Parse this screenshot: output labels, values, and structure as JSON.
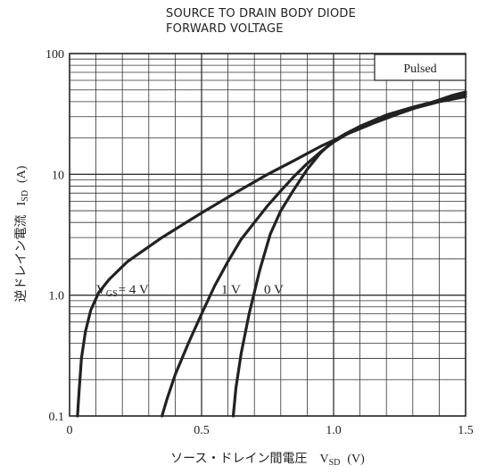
{
  "chart_data": {
    "type": "line",
    "title_lines": [
      "SOURCE TO DRAIN BODY DIODE",
      "FORWARD VOLTAGE"
    ],
    "xlabel": "ソース・ドレイン間電圧",
    "xlabel_symbol": "V",
    "xlabel_subscript": "SD",
    "xlabel_unit": "(V)",
    "ylabel": "逆ドレイン電流",
    "ylabel_symbol": "I",
    "ylabel_subscript": "SD",
    "ylabel_unit": "(A)",
    "xlim": [
      0,
      1.5
    ],
    "ylim": [
      0.1,
      100
    ],
    "yscale": "log",
    "x_ticks": [
      0,
      0.5,
      1.0,
      1.5
    ],
    "x_tick_labels": [
      "0",
      "0.5",
      "1.0",
      "1.5"
    ],
    "y_ticks": [
      0.1,
      1,
      10,
      100
    ],
    "y_tick_labels": [
      "0.1",
      "1.0",
      "10",
      "100"
    ],
    "grid": true,
    "annotation": "Pulsed",
    "series": [
      {
        "name": "V_GS = 4 V",
        "x": [
          0.03,
          0.035,
          0.045,
          0.06,
          0.08,
          0.11,
          0.15,
          0.22,
          0.35,
          0.5,
          0.65,
          0.75,
          0.85,
          0.95,
          1.05,
          1.15,
          1.25,
          1.35,
          1.45,
          1.5
        ],
        "y": [
          0.1,
          0.15,
          0.3,
          0.5,
          0.75,
          1.05,
          1.35,
          1.9,
          3.0,
          4.8,
          7.5,
          10,
          13,
          17,
          21.5,
          26.5,
          32,
          38,
          45,
          48
        ]
      },
      {
        "name": "1 V",
        "x": [
          0.35,
          0.37,
          0.4,
          0.45,
          0.5,
          0.55,
          0.6,
          0.65,
          0.7,
          0.75,
          0.8,
          0.85,
          0.9,
          0.95,
          1.0,
          1.1,
          1.2,
          1.3,
          1.4,
          1.5
        ],
        "y": [
          0.1,
          0.14,
          0.22,
          0.4,
          0.7,
          1.2,
          1.9,
          2.9,
          4.0,
          5.5,
          7.3,
          9.6,
          12.3,
          15.3,
          18.5,
          25,
          31,
          36,
          41,
          46
        ]
      },
      {
        "name": "0 V",
        "x": [
          0.62,
          0.63,
          0.65,
          0.68,
          0.72,
          0.76,
          0.8,
          0.85,
          0.9,
          0.95,
          1.0,
          1.05,
          1.1,
          1.2,
          1.3,
          1.4,
          1.5
        ],
        "y": [
          0.1,
          0.17,
          0.33,
          0.7,
          1.6,
          3.2,
          5.0,
          7.5,
          11,
          15,
          19,
          22,
          25,
          30,
          35,
          40,
          44
        ]
      }
    ],
    "curve_labels": {
      "vgs_symbol": "V",
      "vgs_subscript": "GS",
      "vgs_value": "= 4  V",
      "one": "1  V",
      "zero": "0  V"
    }
  }
}
